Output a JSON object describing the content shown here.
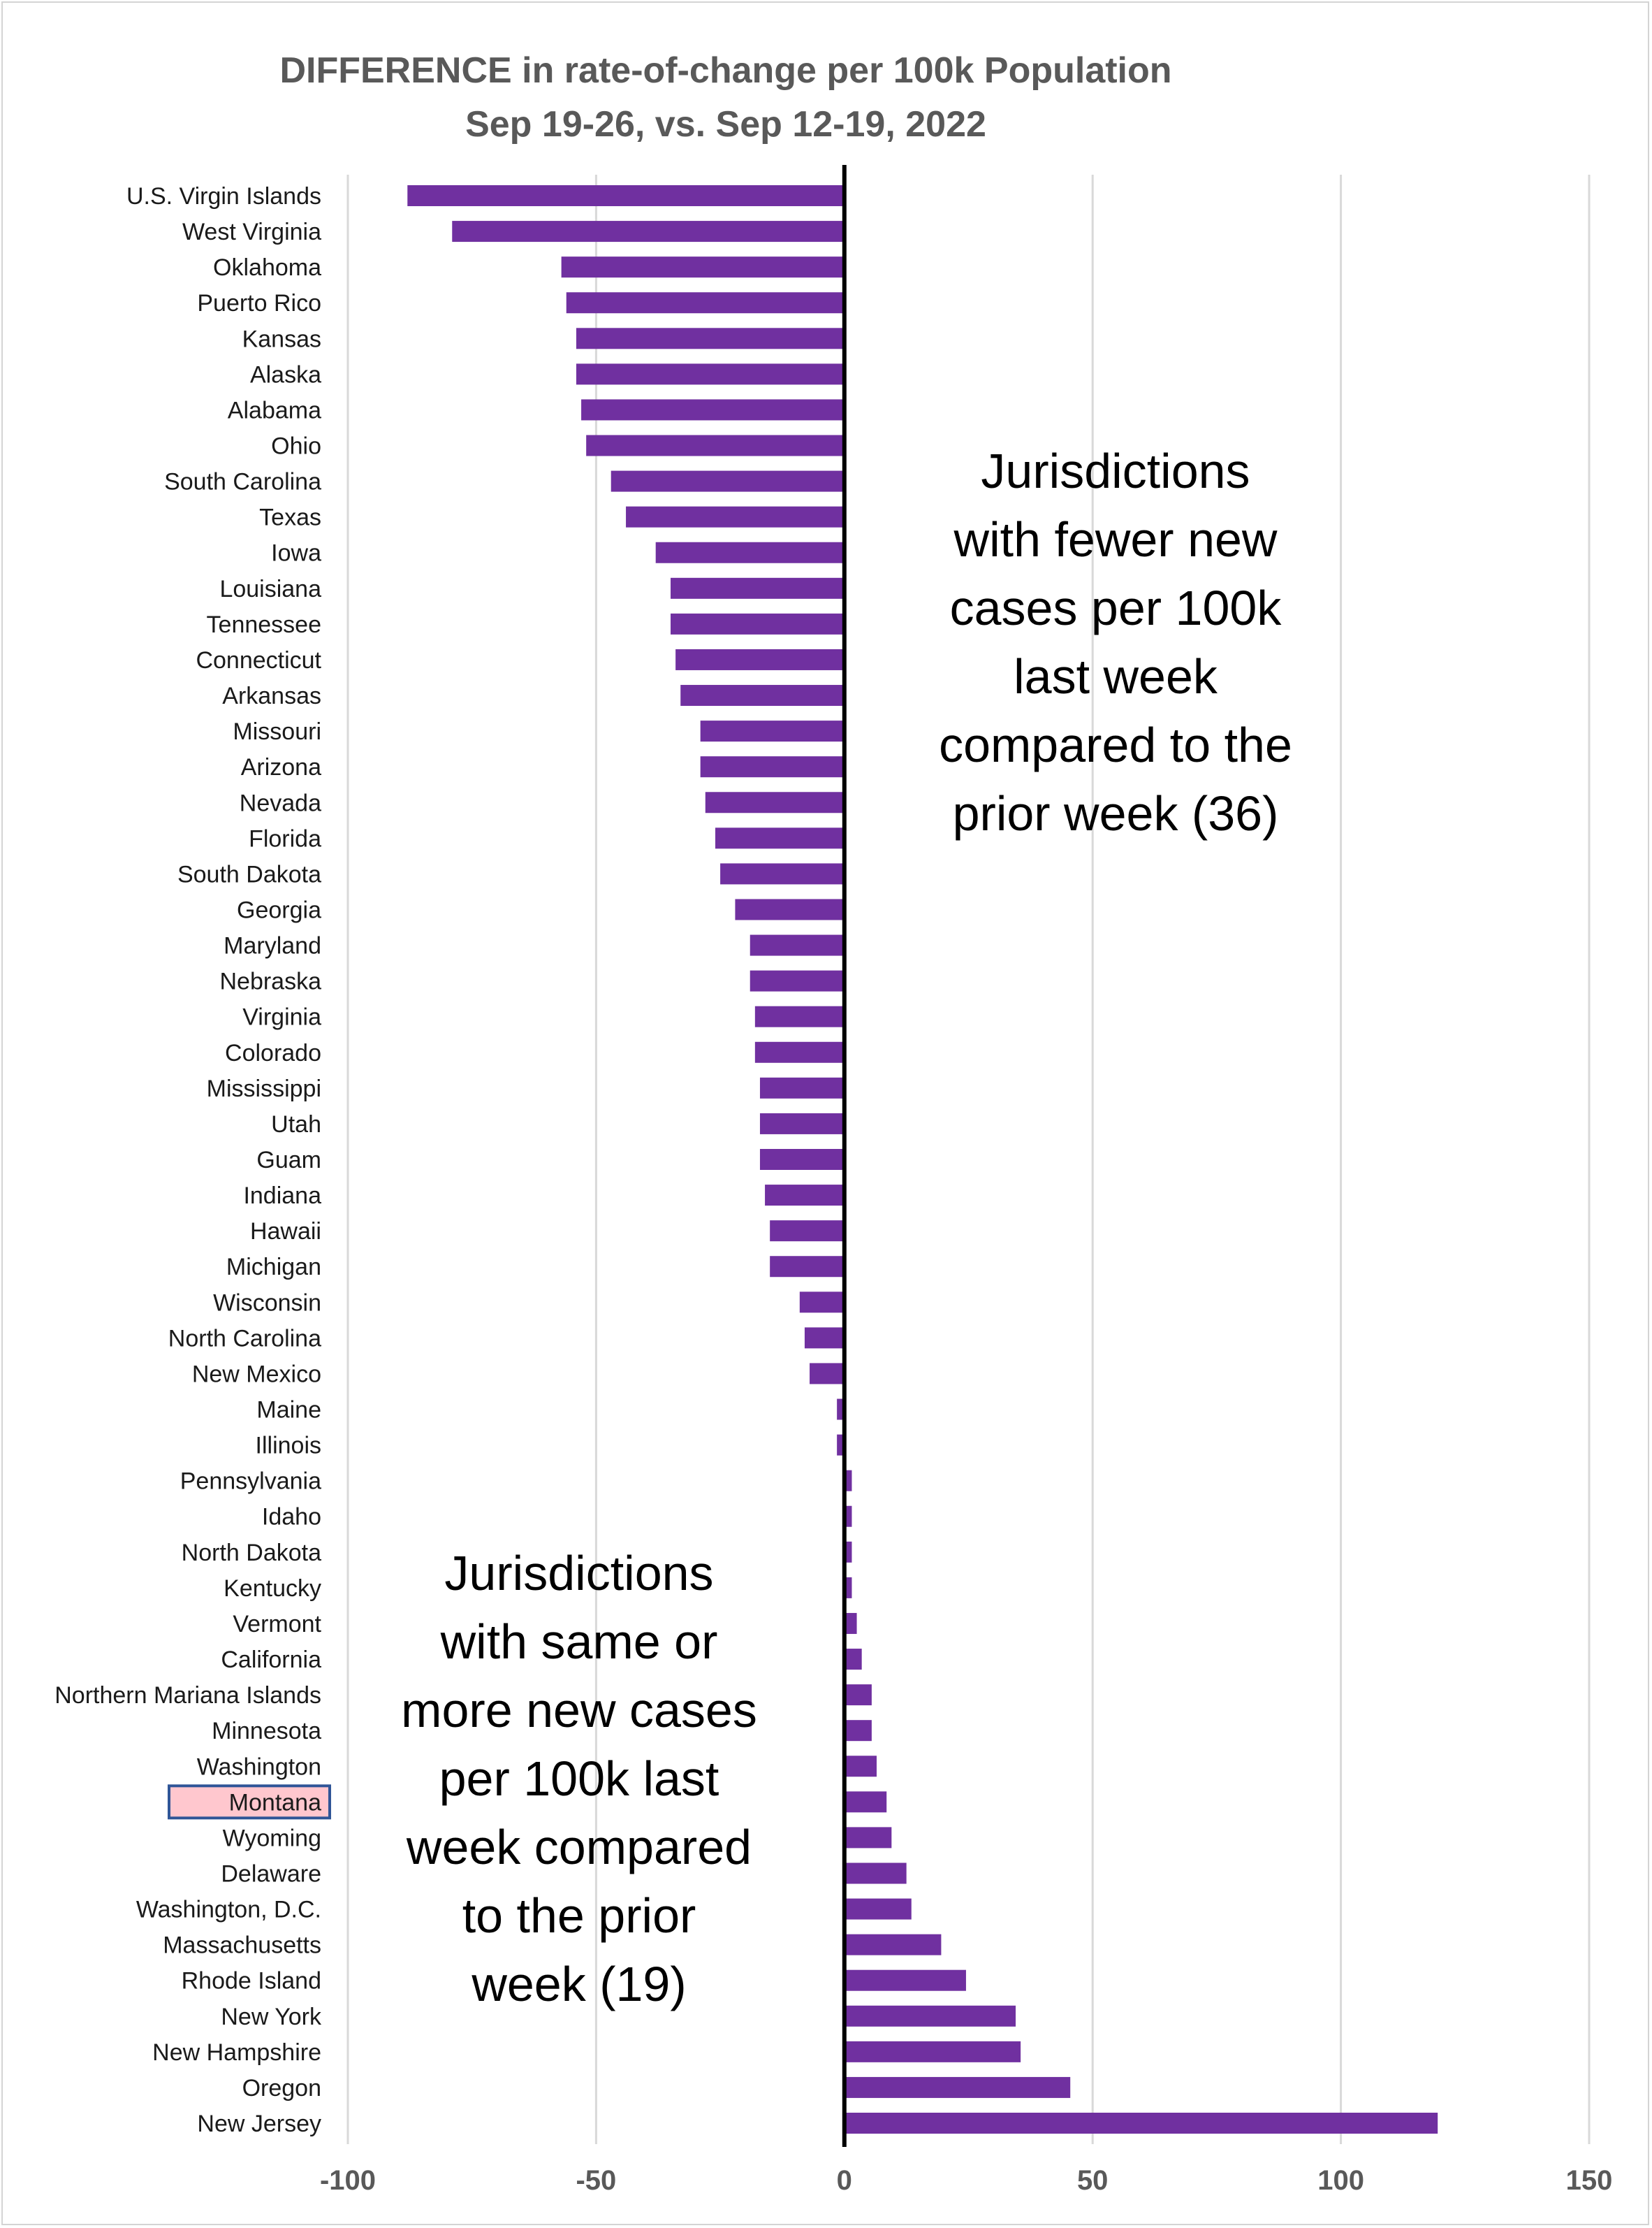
{
  "chart_data": {
    "type": "bar",
    "orientation": "horizontal",
    "title": [
      "DIFFERENCE in rate-of-change per 100k Population",
      "Sep 19-26, vs. Sep 12-19, 2022"
    ],
    "xlabel": "",
    "ylabel": "",
    "xlim": [
      -100,
      150
    ],
    "xticks": [
      -100,
      -50,
      0,
      50,
      100,
      150
    ],
    "grid": true,
    "bar_color": "#7030a0",
    "zero_line_color": "#000000",
    "highlight": {
      "category": "Montana",
      "fill": "#ffc7ce",
      "border": "#2f5597"
    },
    "categories": [
      "U.S. Virgin Islands",
      "West Virginia",
      "Oklahoma",
      "Puerto Rico",
      "Kansas",
      "Alaska",
      "Alabama",
      "Ohio",
      "South Carolina",
      "Texas",
      "Iowa",
      "Louisiana",
      "Tennessee",
      "Connecticut",
      "Arkansas",
      "Missouri",
      "Arizona",
      "Nevada",
      "Florida",
      "South Dakota",
      "Georgia",
      "Maryland",
      "Nebraska",
      "Virginia",
      "Colorado",
      "Mississippi",
      "Utah",
      "Guam",
      "Indiana",
      "Hawaii",
      "Michigan",
      "Wisconsin",
      "North Carolina",
      "New Mexico",
      "Maine",
      "Illinois",
      "Pennsylvania",
      "Idaho",
      "North Dakota",
      "Kentucky",
      "Vermont",
      "California",
      "Northern Mariana Islands",
      "Minnesota",
      "Washington",
      "Montana",
      "Wyoming",
      "Delaware",
      "Washington, D.C.",
      "Massachusetts",
      "Rhode Island",
      "New York",
      "New Hampshire",
      "Oregon",
      "New Jersey"
    ],
    "values": [
      -88,
      -79,
      -57,
      -56,
      -54,
      -54,
      -53,
      -52,
      -47,
      -44,
      -38,
      -35,
      -35,
      -34,
      -33,
      -29,
      -29,
      -28,
      -26,
      -25,
      -22,
      -19,
      -19,
      -18,
      -18,
      -17,
      -17,
      -17,
      -16,
      -15,
      -15,
      -9,
      -8,
      -7,
      -1.5,
      -1.5,
      1.5,
      1.5,
      1.5,
      1.5,
      2.5,
      3.5,
      5.5,
      5.5,
      6.5,
      8.5,
      9.5,
      12.5,
      13.5,
      19.5,
      24.5,
      34.5,
      35.5,
      45.5,
      119.5
    ],
    "annotations": [
      {
        "id": "fewer",
        "lines": [
          "Jurisdictions",
          "with fewer new",
          "cases per 100k",
          "last week",
          "compared to the",
          "prior week (36)"
        ]
      },
      {
        "id": "more",
        "lines": [
          "Jurisdictions",
          "with same or",
          "more new cases",
          "per 100k last",
          "week compared",
          "to the prior",
          "week (19)"
        ]
      }
    ]
  }
}
